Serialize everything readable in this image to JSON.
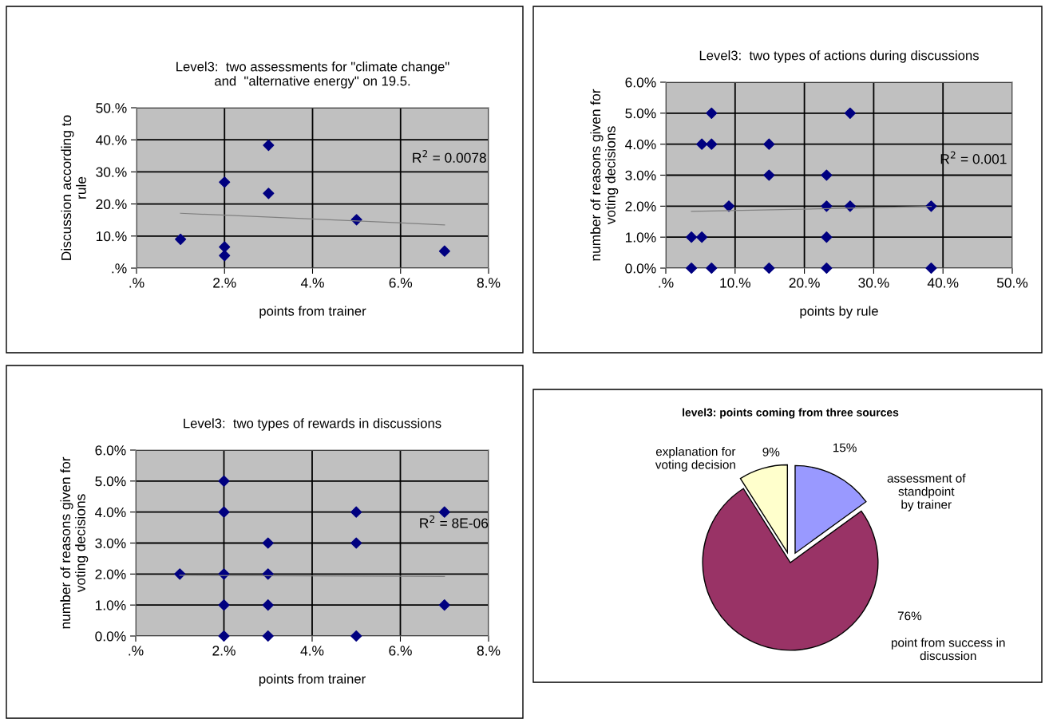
{
  "chart_data": [
    {
      "type": "scatter",
      "title": "Level3:  two assessments for \"climate change\"\nand  \"alternative energy\" on 19.5.",
      "xlabel": "points from trainer",
      "ylabel": "Discussion according to\nrule",
      "annotations": [
        "R$^{2}$ = 0.0078"
      ],
      "marker": "diamond",
      "grid": true,
      "legend": false,
      "xlim": [
        0,
        8
      ],
      "xticks": [
        {
          "value": 0,
          "label": ".%"
        },
        {
          "value": 2,
          "label": "2.%"
        },
        {
          "value": 4,
          "label": "4.%"
        },
        {
          "value": 6,
          "label": "6.%"
        },
        {
          "value": 8,
          "label": "8.%"
        }
      ],
      "ylim": [
        0,
        50
      ],
      "yticks": [
        {
          "value": 0,
          "label": ".%"
        },
        {
          "value": 10,
          "label": "10.%"
        },
        {
          "value": 20,
          "label": "20.%"
        },
        {
          "value": 30,
          "label": "30.%"
        },
        {
          "value": 40,
          "label": "40.%"
        },
        {
          "value": 50,
          "label": "50.%"
        }
      ],
      "series": [
        {
          "type": "scatter",
          "color": "#000080",
          "x": [
            1,
            2,
            2,
            2,
            3,
            3,
            5,
            7
          ],
          "values": [
            9.0,
            26.8,
            6.6,
            3.9,
            38.3,
            23.3,
            15.1,
            5.3
          ]
        },
        {
          "type": "line",
          "color": "#808080",
          "marker": "none",
          "x": [
            1,
            7
          ],
          "values": [
            17.1,
            13.5
          ]
        }
      ]
    },
    {
      "type": "scatter",
      "title": "Level3:  two types of actions during discussions",
      "xlabel": "points by rule",
      "ylabel": "number of reasons given for\nvoting decisions",
      "annotations": [
        "R$^{2}$ = 0.001"
      ],
      "marker": "diamond",
      "grid": true,
      "legend": false,
      "xlim": [
        0,
        50
      ],
      "xticks": [
        {
          "value": 0,
          "label": ".%"
        },
        {
          "value": 10,
          "label": "10.%"
        },
        {
          "value": 20,
          "label": "20.%"
        },
        {
          "value": 30,
          "label": "30.%"
        },
        {
          "value": 40,
          "label": "40.%"
        },
        {
          "value": 50,
          "label": "50.%"
        }
      ],
      "ylim": [
        0,
        6
      ],
      "yticks": [
        {
          "value": 0,
          "label": "0.0%"
        },
        {
          "value": 1,
          "label": "1.0%"
        },
        {
          "value": 2,
          "label": "2.0%"
        },
        {
          "value": 3,
          "label": "3.0%"
        },
        {
          "value": 4,
          "label": "4.0%"
        },
        {
          "value": 5,
          "label": "5.0%"
        },
        {
          "value": 6,
          "label": "6.0%"
        }
      ],
      "series": [
        {
          "type": "scatter",
          "color": "#000080",
          "x": [
            3.7,
            6.6,
            14.9,
            23.2,
            38.3,
            3.7,
            5.2,
            23.2,
            9.1,
            23.2,
            26.6,
            38.3,
            14.9,
            23.2,
            5.2,
            6.6,
            14.9,
            6.6,
            26.6
          ],
          "values": [
            0,
            0,
            0,
            0,
            0,
            1,
            1,
            1,
            2,
            2,
            2,
            2,
            3,
            3,
            4,
            4,
            4,
            5,
            5
          ]
        },
        {
          "type": "line",
          "color": "#808080",
          "marker": "none",
          "x": [
            3.7,
            38.3
          ],
          "values": [
            1.83,
            1.99
          ]
        }
      ]
    },
    {
      "type": "scatter",
      "title": "Level3:  two types of rewards in discussions",
      "xlabel": "points from trainer",
      "ylabel": "number of reasons given for\nvoting decisions",
      "annotations": [
        "R$^{2}$ = 8E-06"
      ],
      "marker": "diamond",
      "grid": true,
      "legend": false,
      "xlim": [
        0,
        8
      ],
      "xticks": [
        {
          "value": 0,
          "label": ".%"
        },
        {
          "value": 2,
          "label": "2.%"
        },
        {
          "value": 4,
          "label": "4.%"
        },
        {
          "value": 6,
          "label": "6.%"
        },
        {
          "value": 8,
          "label": "8.%"
        }
      ],
      "ylim": [
        0,
        6
      ],
      "yticks": [
        {
          "value": 0,
          "label": "0.0%"
        },
        {
          "value": 1,
          "label": "1.0%"
        },
        {
          "value": 2,
          "label": "2.0%"
        },
        {
          "value": 3,
          "label": "3.0%"
        },
        {
          "value": 4,
          "label": "4.0%"
        },
        {
          "value": 5,
          "label": "5.0%"
        },
        {
          "value": 6,
          "label": "6.0%"
        }
      ],
      "series": [
        {
          "type": "scatter",
          "color": "#000080",
          "x": [
            1,
            2,
            2,
            2,
            2,
            2,
            3,
            3,
            3,
            3,
            5,
            5,
            5,
            7,
            7
          ],
          "values": [
            2,
            5,
            4,
            2,
            1,
            0,
            3,
            2,
            1,
            0,
            4,
            3,
            0,
            4,
            1
          ]
        },
        {
          "type": "line",
          "color": "#808080",
          "marker": "none",
          "x": [
            1,
            7
          ],
          "values": [
            1.96,
            1.92
          ]
        }
      ]
    },
    {
      "type": "pie",
      "title": "level3: points coming from three sources",
      "categories": [
        "assessment of\nstandpoint\nby trainer",
        "point from success in\ndiscussion",
        "explanation for\nvoting decision"
      ],
      "values": [
        15,
        76,
        9
      ],
      "colors": [
        "#9999ff",
        "#993366",
        "#ffffcc"
      ],
      "value_labels": [
        "15%",
        "76%",
        "9%"
      ]
    }
  ]
}
